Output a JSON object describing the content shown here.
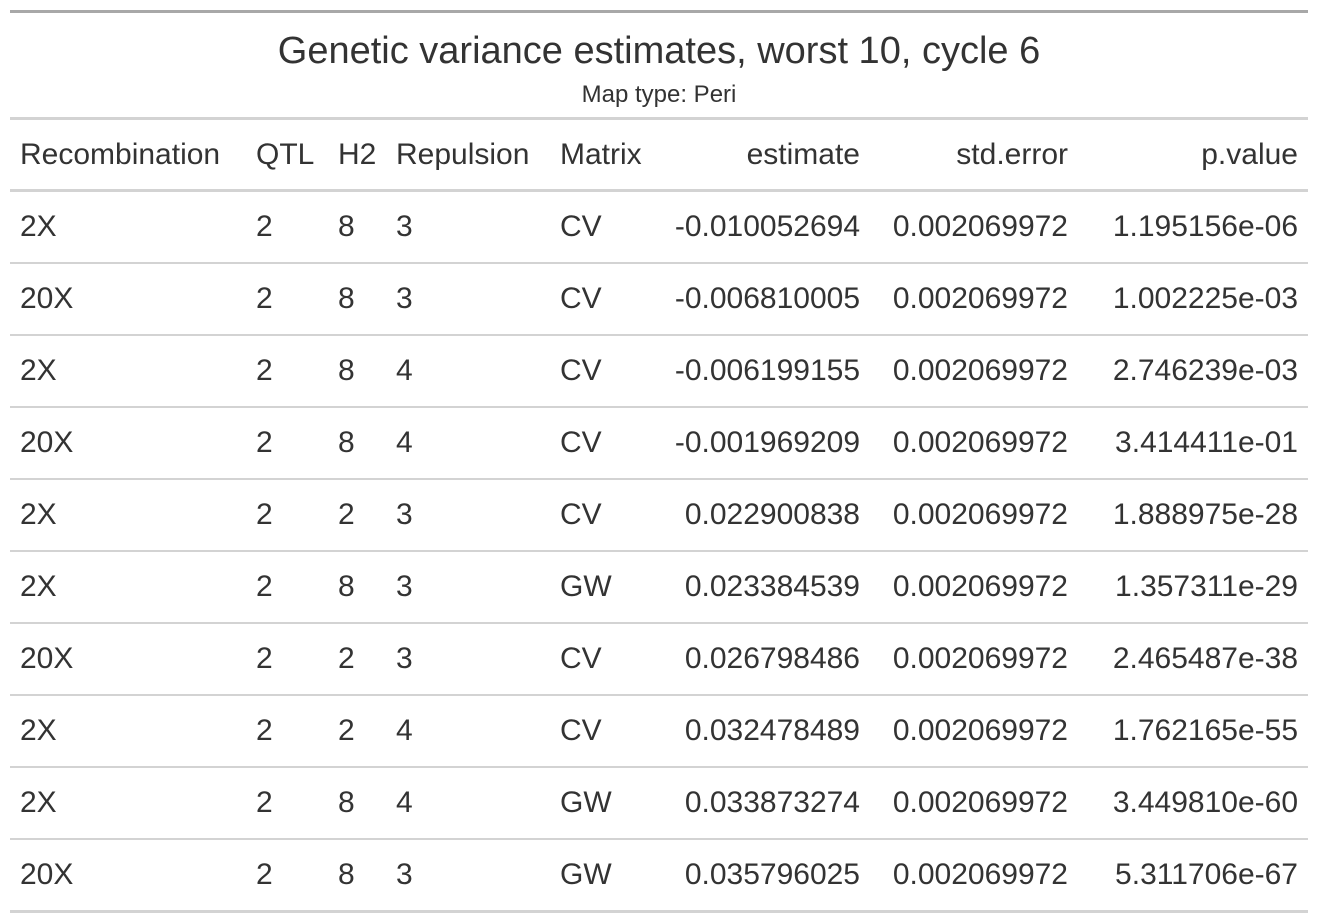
{
  "chart_data": {
    "type": "table",
    "title": "Genetic variance estimates, worst 10, cycle 6",
    "subtitle": "Map type: Peri",
    "columns": [
      "Recombination",
      "QTL",
      "H2",
      "Repulsion",
      "Matrix",
      "estimate",
      "std.error",
      "p.value"
    ],
    "rows": [
      [
        "2X",
        "2",
        "8",
        "3",
        "CV",
        "-0.010052694",
        "0.002069972",
        "1.195156e-06"
      ],
      [
        "20X",
        "2",
        "8",
        "3",
        "CV",
        "-0.006810005",
        "0.002069972",
        "1.002225e-03"
      ],
      [
        "2X",
        "2",
        "8",
        "4",
        "CV",
        "-0.006199155",
        "0.002069972",
        "2.746239e-03"
      ],
      [
        "20X",
        "2",
        "8",
        "4",
        "CV",
        "-0.001969209",
        "0.002069972",
        "3.414411e-01"
      ],
      [
        "2X",
        "2",
        "2",
        "3",
        "CV",
        "0.022900838",
        "0.002069972",
        "1.888975e-28"
      ],
      [
        "2X",
        "2",
        "8",
        "3",
        "GW",
        "0.023384539",
        "0.002069972",
        "1.357311e-29"
      ],
      [
        "20X",
        "2",
        "2",
        "3",
        "CV",
        "0.026798486",
        "0.002069972",
        "2.465487e-38"
      ],
      [
        "2X",
        "2",
        "2",
        "4",
        "CV",
        "0.032478489",
        "0.002069972",
        "1.762165e-55"
      ],
      [
        "2X",
        "2",
        "8",
        "4",
        "GW",
        "0.033873274",
        "0.002069972",
        "3.449810e-60"
      ],
      [
        "20X",
        "2",
        "8",
        "3",
        "GW",
        "0.035796025",
        "0.002069972",
        "5.311706e-67"
      ]
    ]
  }
}
